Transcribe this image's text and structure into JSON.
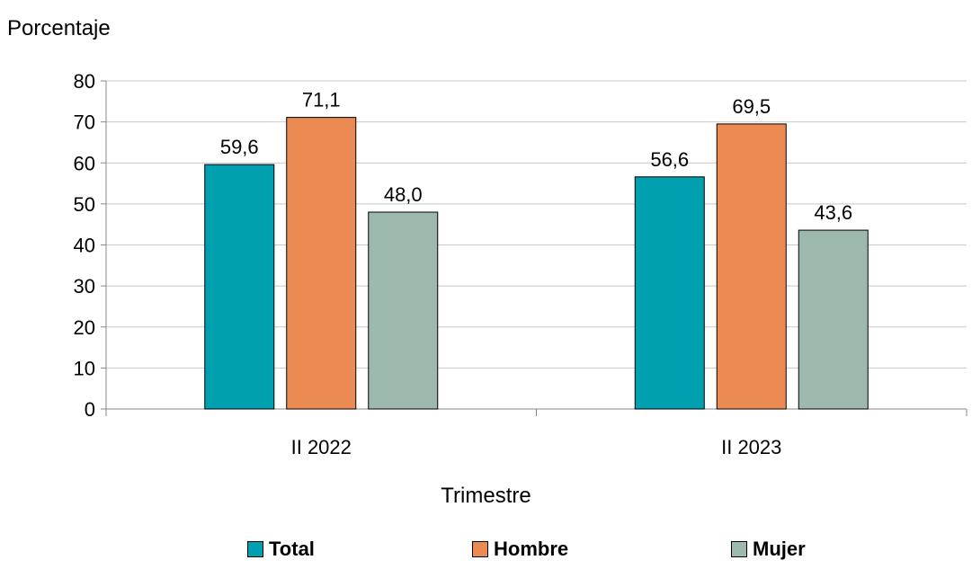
{
  "chart_data": {
    "type": "bar",
    "ylabel": "Porcentaje",
    "xlabel": "Trimestre",
    "categories": [
      "II 2022",
      "II 2023"
    ],
    "ylim": [
      0,
      80
    ],
    "yticks": [
      0,
      10,
      20,
      30,
      40,
      50,
      60,
      70,
      80
    ],
    "grid": true,
    "legend_position": "bottom",
    "series": [
      {
        "name": "Total",
        "color": "#00A0B0",
        "values": [
          59.6,
          56.6
        ],
        "labels": [
          "59,6",
          "56,6"
        ]
      },
      {
        "name": "Hombre",
        "color": "#EB8A53",
        "values": [
          71.1,
          69.5
        ],
        "labels": [
          "71,1",
          "69,5"
        ]
      },
      {
        "name": "Mujer",
        "color": "#9DB8AC",
        "values": [
          48.0,
          43.6
        ],
        "labels": [
          "48,0",
          "43,6"
        ]
      }
    ]
  }
}
